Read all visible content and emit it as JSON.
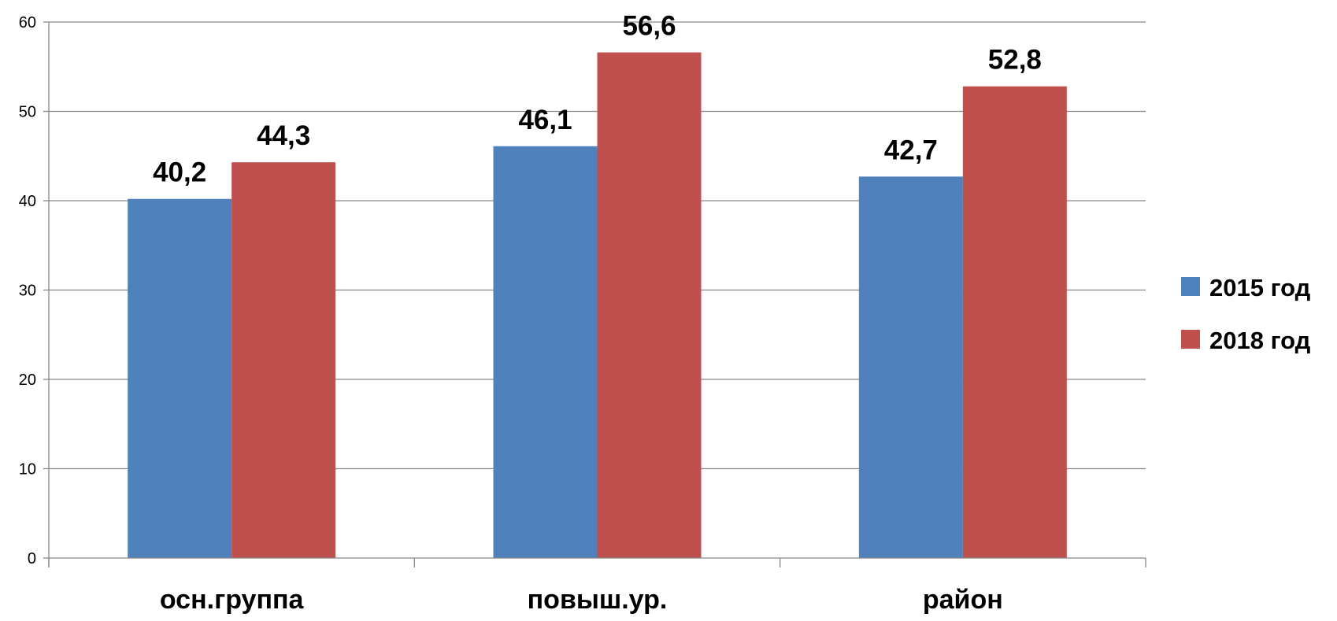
{
  "chart_data": {
    "type": "bar",
    "categories": [
      "осн.группа",
      "повыш.ур.",
      "район"
    ],
    "series": [
      {
        "name": "2015 год",
        "values": [
          40.2,
          46.1,
          42.7
        ],
        "labels": [
          "40,2",
          "46,1",
          "42,7"
        ],
        "color": "#4f81bd"
      },
      {
        "name": "2018 год",
        "values": [
          44.3,
          56.6,
          52.8
        ],
        "labels": [
          "44,3",
          "56,6",
          "52,8"
        ],
        "color": "#c0504d"
      }
    ],
    "ylim": [
      0,
      60
    ],
    "yticks": [
      0,
      10,
      20,
      30,
      40,
      50,
      60
    ],
    "ytick_labels": [
      "0",
      "10",
      "20",
      "30",
      "40",
      "50",
      "60"
    ],
    "grid": true,
    "legend": "right",
    "title": "",
    "xlabel": "",
    "ylabel": ""
  }
}
